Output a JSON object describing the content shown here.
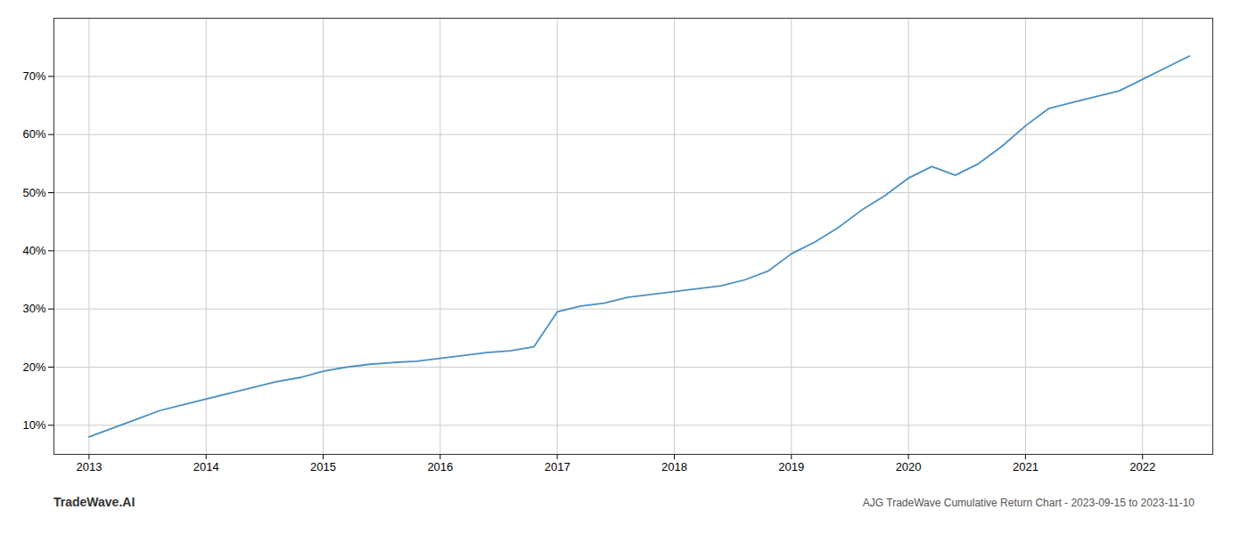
{
  "chart_data": {
    "type": "line",
    "title": "AJG TradeWave Cumulative Return Chart - 2023-09-15 to 2023-11-10",
    "annotations": [
      "TradeWave.AI"
    ],
    "x": [
      2013.0,
      2013.2,
      2013.4,
      2013.6,
      2013.8,
      2014.0,
      2014.2,
      2014.4,
      2014.6,
      2014.8,
      2015.0,
      2015.2,
      2015.4,
      2015.6,
      2015.8,
      2016.0,
      2016.2,
      2016.4,
      2016.6,
      2016.8,
      2017.0,
      2017.2,
      2017.4,
      2017.6,
      2017.8,
      2018.0,
      2018.2,
      2018.4,
      2018.6,
      2018.8,
      2019.0,
      2019.2,
      2019.4,
      2019.6,
      2019.8,
      2020.0,
      2020.2,
      2020.4,
      2020.6,
      2020.8,
      2021.0,
      2021.2,
      2021.4,
      2021.6,
      2021.8,
      2022.0,
      2022.2,
      2022.4
    ],
    "values": [
      8.0,
      9.5,
      11.0,
      12.5,
      13.5,
      14.5,
      15.5,
      16.5,
      17.5,
      18.2,
      19.3,
      20.0,
      20.5,
      20.8,
      21.0,
      21.5,
      22.0,
      22.5,
      22.8,
      23.5,
      29.5,
      30.5,
      31.0,
      32.0,
      32.5,
      33.0,
      33.5,
      34.0,
      35.0,
      36.5,
      39.5,
      41.5,
      44.0,
      47.0,
      49.5,
      52.5,
      54.5,
      53.0,
      55.0,
      58.0,
      61.5,
      64.5,
      65.5,
      66.5,
      67.5,
      69.5,
      71.5,
      73.5
    ],
    "color": "#4a90c4",
    "xlim": [
      2012.7,
      2022.6
    ],
    "xticks": [
      2013,
      2014,
      2015,
      2016,
      2017,
      2018,
      2019,
      2020,
      2021,
      2022
    ],
    "ylim": [
      5,
      80
    ],
    "yticks": [
      {
        "value": 10,
        "label": "10%"
      },
      {
        "value": 20,
        "label": "20%"
      },
      {
        "value": 30,
        "label": "30%"
      },
      {
        "value": 40,
        "label": "40%"
      },
      {
        "value": 50,
        "label": "50%"
      },
      {
        "value": 60,
        "label": "60%"
      },
      {
        "value": 70,
        "label": "70%"
      }
    ],
    "grid": true
  }
}
